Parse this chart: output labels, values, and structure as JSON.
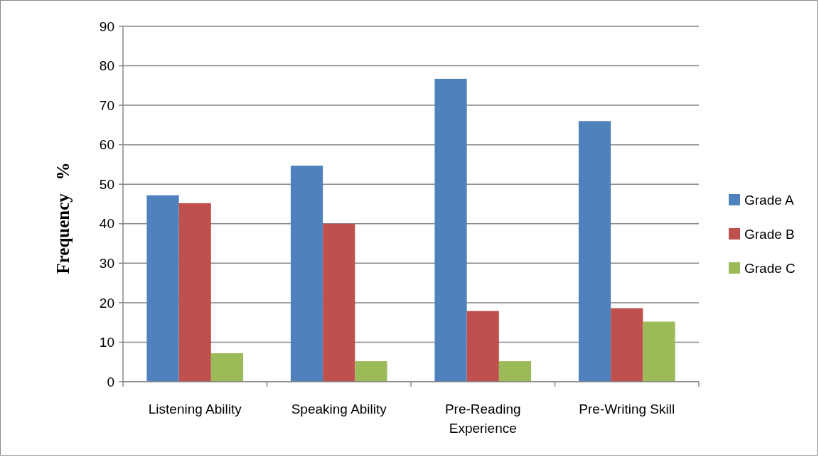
{
  "chart_data": {
    "type": "bar",
    "ylabel": "Frequency   %",
    "categories": [
      "Listening Ability",
      "Speaking Ability",
      "Pre-Reading Experience",
      "Pre-Writing Skill"
    ],
    "series": [
      {
        "name": "Grade A",
        "color": "#4f81bd",
        "values": [
          47.2,
          54.7,
          76.7,
          66.0
        ]
      },
      {
        "name": "Grade B",
        "color": "#c0504d",
        "values": [
          45.2,
          40.0,
          17.9,
          18.6
        ]
      },
      {
        "name": "Grade C",
        "color": "#9bbb59",
        "values": [
          7.2,
          5.2,
          5.2,
          15.2
        ]
      }
    ],
    "ylim": [
      0,
      90
    ],
    "yticks": [
      0,
      10,
      20,
      30,
      40,
      50,
      60,
      70,
      80,
      90
    ],
    "grid": "y",
    "legend": "right"
  }
}
